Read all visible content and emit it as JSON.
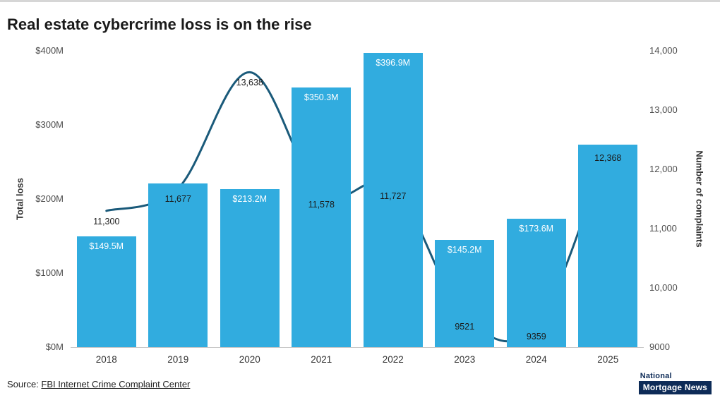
{
  "page": {
    "title": "Real estate cybercrime loss is on the rise",
    "source_prefix": "Source: ",
    "source_link": "FBI Internet Crime Complaint Center",
    "logo_line1": "National",
    "logo_line2": "Mortgage News"
  },
  "chart_data": {
    "type": "combo-bar-line",
    "title": "Real estate cybercrime loss is on the rise",
    "categories": [
      "2018",
      "2019",
      "2020",
      "2021",
      "2022",
      "2023",
      "2024",
      "2025"
    ],
    "series": [
      {
        "name": "Total loss",
        "type": "bar",
        "axis": "left",
        "color": "#31acdf",
        "values": [
          149.5,
          221,
          213.2,
          350.3,
          396.9,
          145.2,
          173.6,
          273
        ],
        "labels": [
          "$149.5M",
          "",
          "$213.2M",
          "$350.3M",
          "$396.9M",
          "$145.2M",
          "$173.6M",
          ""
        ]
      },
      {
        "name": "Number of complaints",
        "type": "line",
        "axis": "right",
        "color": "#1a5a7a",
        "values": [
          11300,
          11677,
          13638,
          11578,
          11727,
          9521,
          9359,
          12368
        ],
        "labels": [
          "11,300",
          "11,677",
          "13,638",
          "11,578",
          "11,727",
          "9521",
          "9359",
          "12,368"
        ]
      }
    ],
    "left_axis": {
      "label": "Total loss",
      "min": 0,
      "max": 400,
      "ticks": [
        "$0M",
        "$100M",
        "$200M",
        "$300M",
        "$400M"
      ]
    },
    "right_axis": {
      "label": "Number of complaints",
      "min": 9000,
      "max": 14000,
      "ticks": [
        "9000",
        "10,000",
        "11,000",
        "12,000",
        "13,000",
        "14,000"
      ]
    },
    "grid": "off",
    "legend": "none"
  }
}
